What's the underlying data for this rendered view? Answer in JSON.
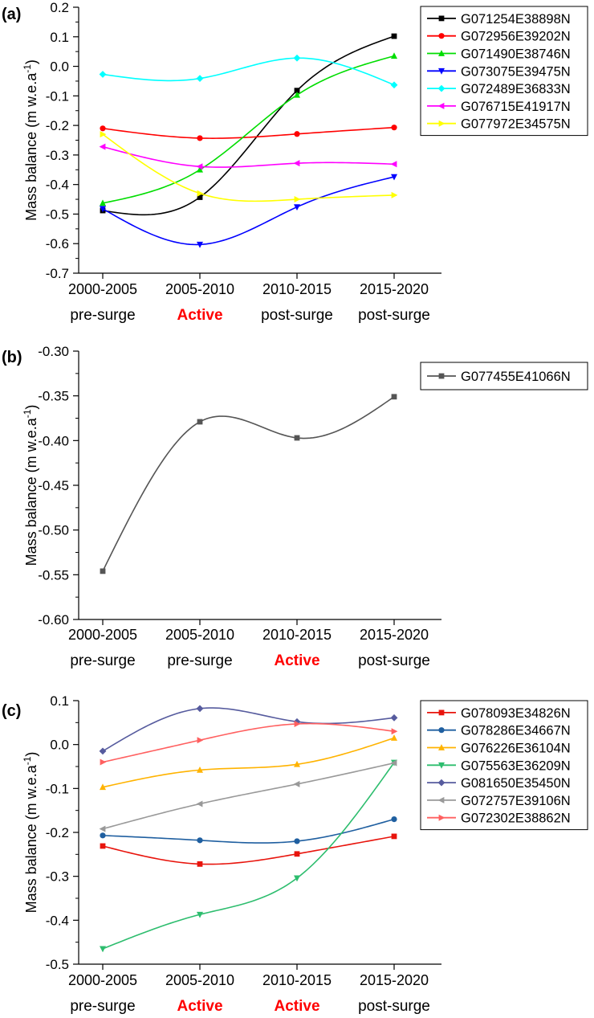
{
  "chart_data": [
    {
      "panel_label": "(a)",
      "type": "line",
      "title": "",
      "xlabel": "",
      "ylabel": "Mass balance (m w.e.a",
      "ylabel_sup": "-1",
      "ylabel_close": ")",
      "ylim": [
        -0.7,
        0.2
      ],
      "yticks": [
        -0.7,
        -0.6,
        -0.5,
        -0.4,
        -0.3,
        -0.2,
        -0.1,
        0.0,
        0.1,
        0.2
      ],
      "ytick_labels": [
        "-0.7",
        "-0.6",
        "-0.5",
        "-0.4",
        "-0.3",
        "-0.2",
        "-0.1",
        "0.0",
        "0.1",
        "0.2"
      ],
      "categories": [
        "2000-2005",
        "2005-2010",
        "2010-2015",
        "2015-2020"
      ],
      "phases": [
        "pre-surge",
        "Active",
        "post-surge",
        "post-surge"
      ],
      "legend_position": "top-right",
      "series": [
        {
          "name": "G071254E38898N",
          "color": "#000000",
          "marker": "square",
          "values": [
            -0.488,
            -0.443,
            -0.082,
            0.102
          ]
        },
        {
          "name": "G072956E39202N",
          "color": "#ff0000",
          "marker": "circle",
          "values": [
            -0.21,
            -0.243,
            -0.229,
            -0.207
          ]
        },
        {
          "name": "G071490E38746N",
          "color": "#00dd00",
          "marker": "triangle-up",
          "values": [
            -0.463,
            -0.35,
            -0.097,
            0.035
          ]
        },
        {
          "name": "G073075E39475N",
          "color": "#0000ff",
          "marker": "triangle-down",
          "values": [
            -0.482,
            -0.603,
            -0.476,
            -0.374
          ]
        },
        {
          "name": "G072489E36833N",
          "color": "#00ffff",
          "marker": "diamond",
          "values": [
            -0.027,
            -0.041,
            0.028,
            -0.063
          ]
        },
        {
          "name": "G076715E41917N",
          "color": "#ff00ff",
          "marker": "triangle-left",
          "values": [
            -0.272,
            -0.339,
            -0.328,
            -0.331
          ]
        },
        {
          "name": "G077972E34575N",
          "color": "#ffff00",
          "marker": "triangle-right",
          "values": [
            -0.23,
            -0.43,
            -0.45,
            -0.436
          ]
        }
      ]
    },
    {
      "panel_label": "(b)",
      "type": "line",
      "title": "",
      "xlabel": "",
      "ylabel": "Mass balance (m w.e.a",
      "ylabel_sup": "-1",
      "ylabel_close": ")",
      "ylim": [
        -0.6,
        -0.3
      ],
      "yticks": [
        -0.6,
        -0.55,
        -0.5,
        -0.45,
        -0.4,
        -0.35,
        -0.3
      ],
      "ytick_labels": [
        "-0.60",
        "-0.55",
        "-0.50",
        "-0.45",
        "-0.40",
        "-0.35",
        "-0.30"
      ],
      "categories": [
        "2000-2005",
        "2005-2010",
        "2010-2015",
        "2015-2020"
      ],
      "phases": [
        "pre-surge",
        "pre-surge",
        "Active",
        "post-surge"
      ],
      "legend_position": "top-right",
      "series": [
        {
          "name": "G077455E41066N",
          "color": "#555555",
          "marker": "square",
          "values": [
            -0.546,
            -0.379,
            -0.397,
            -0.351
          ]
        }
      ]
    },
    {
      "panel_label": "(c)",
      "type": "line",
      "title": "",
      "xlabel": "",
      "ylabel": "Mass balance (m w.e.a",
      "ylabel_sup": "-1",
      "ylabel_close": ")",
      "ylim": [
        -0.5,
        0.1
      ],
      "yticks": [
        -0.5,
        -0.4,
        -0.3,
        -0.2,
        -0.1,
        0.0,
        0.1
      ],
      "ytick_labels": [
        "-0.5",
        "-0.4",
        "-0.3",
        "-0.2",
        "-0.1",
        "0.0",
        "0.1"
      ],
      "categories": [
        "2000-2005",
        "2005-2010",
        "2010-2015",
        "2015-2020"
      ],
      "phases": [
        "pre-surge",
        "Active",
        "Active",
        "post-surge"
      ],
      "legend_position": "top-right",
      "series": [
        {
          "name": "G078093E34826N",
          "color": "#e8140c",
          "marker": "square",
          "values": [
            -0.231,
            -0.272,
            -0.249,
            -0.209
          ]
        },
        {
          "name": "G078286E34667N",
          "color": "#1f5fa0",
          "marker": "circle",
          "values": [
            -0.207,
            -0.218,
            -0.22,
            -0.17
          ]
        },
        {
          "name": "G076226E36104N",
          "color": "#ffb300",
          "marker": "triangle-up",
          "values": [
            -0.097,
            -0.058,
            -0.045,
            0.015
          ]
        },
        {
          "name": "G075563E36209N",
          "color": "#2dbd6e",
          "marker": "triangle-down",
          "values": [
            -0.465,
            -0.387,
            -0.304,
            -0.041
          ]
        },
        {
          "name": "G081650E35450N",
          "color": "#565b9e",
          "marker": "diamond",
          "values": [
            -0.015,
            0.082,
            0.052,
            0.061
          ]
        },
        {
          "name": "G072757E39106N",
          "color": "#999999",
          "marker": "triangle-left",
          "values": [
            -0.192,
            -0.135,
            -0.09,
            -0.042
          ]
        },
        {
          "name": "G072302E38862N",
          "color": "#ff6060",
          "marker": "triangle-right",
          "values": [
            -0.04,
            0.01,
            0.047,
            0.03
          ]
        }
      ]
    }
  ],
  "colors": {
    "axis": "#000000",
    "active_phase": "#ff0000",
    "normal_phase": "#000000",
    "background": "#ffffff"
  },
  "active_phase_label": "Active"
}
